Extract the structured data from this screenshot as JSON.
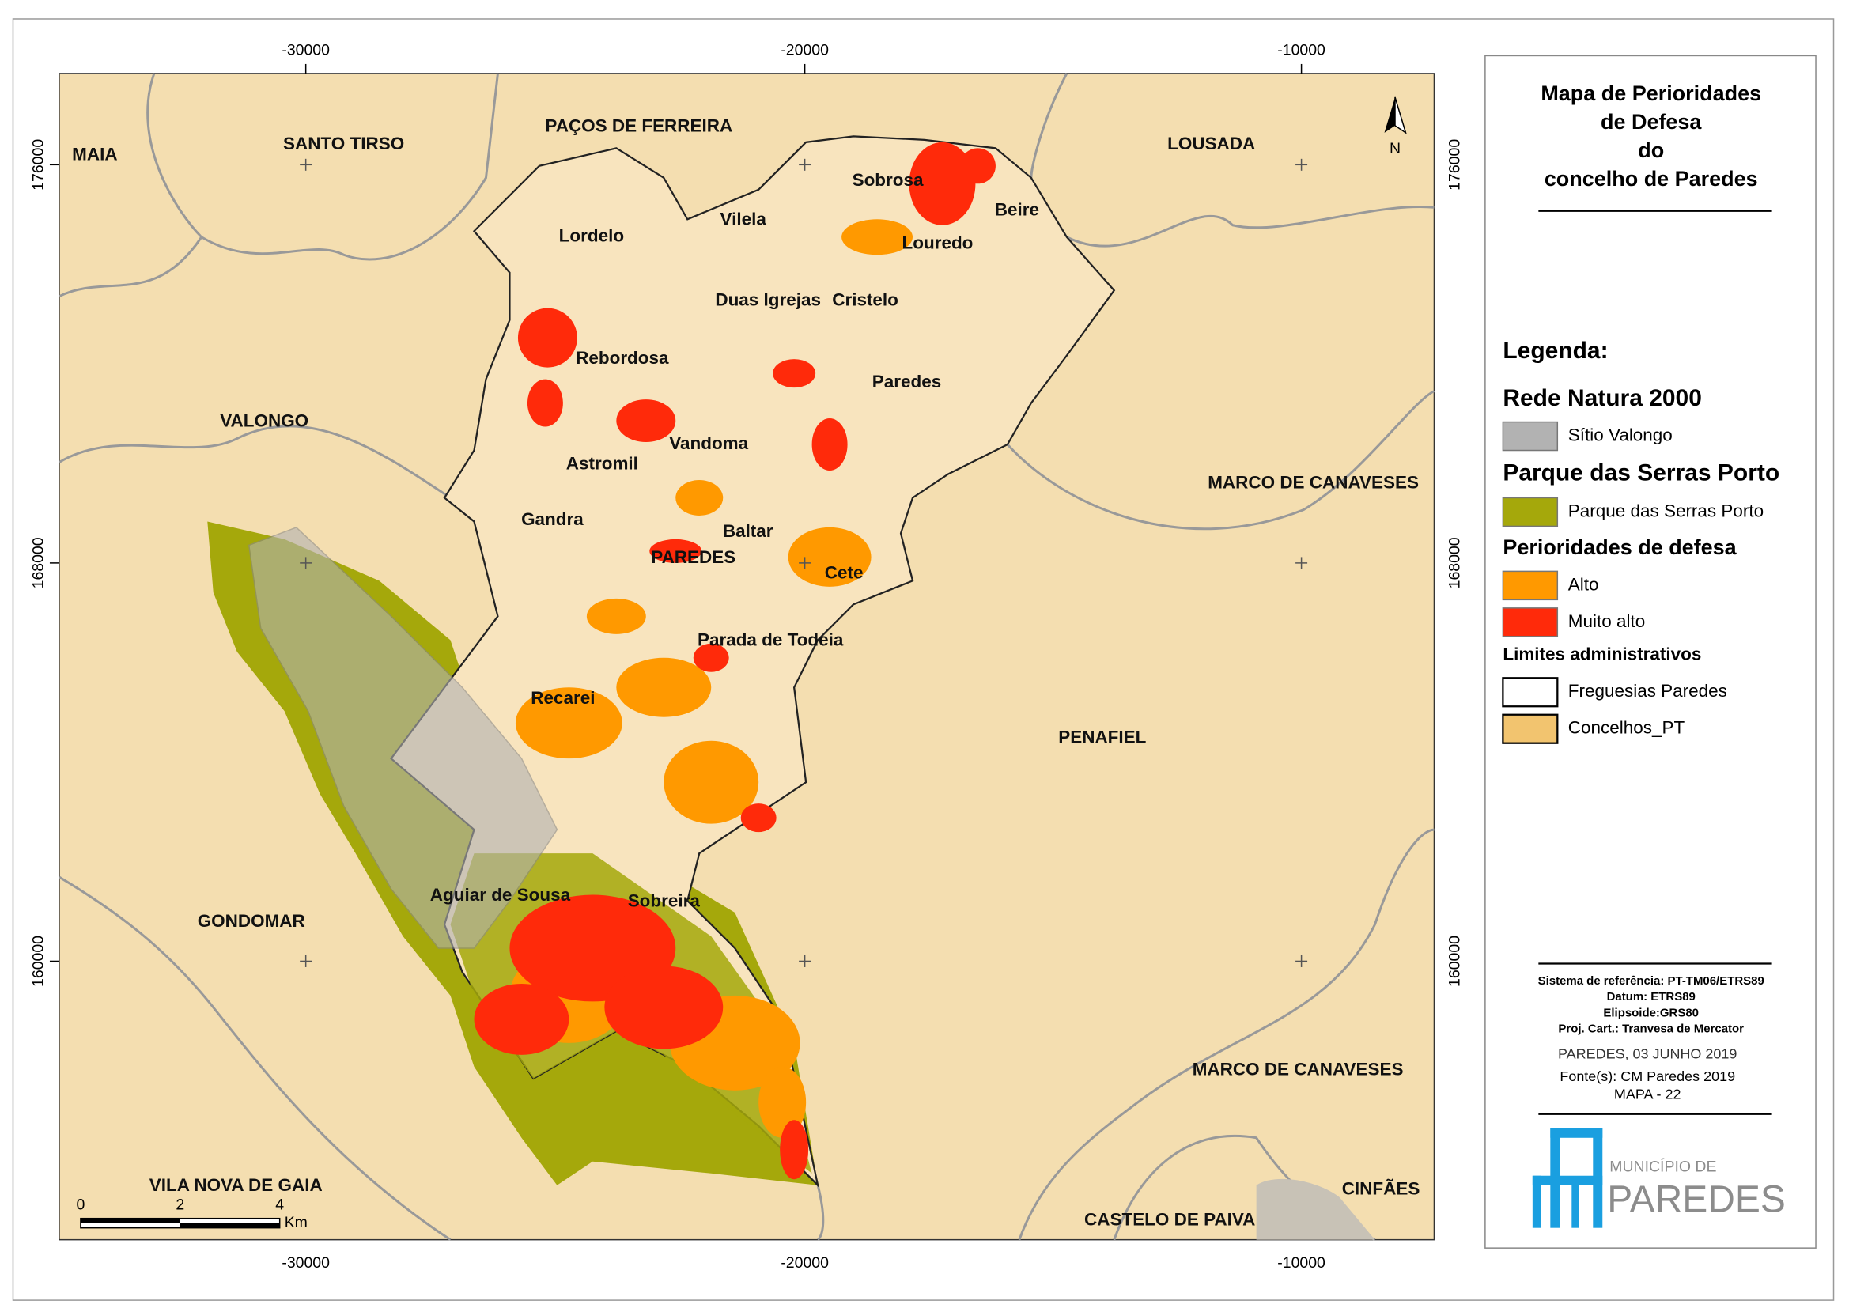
{
  "title_lines": [
    "Mapa de Perioridades",
    "de Defesa",
    "do",
    "concelho de Paredes"
  ],
  "map": {
    "x_ticks": [
      -30000,
      -20000,
      -10000
    ],
    "y_ticks": [
      176000,
      168000,
      160000
    ],
    "municipalities": [
      "MAIA",
      "SANTO TIRSO",
      "PAÇOS DE FERREIRA",
      "LOUSADA",
      "VALONGO",
      "MARCO DE CANAVESES",
      "PENAFIEL",
      "GONDOMAR",
      "MARCO DE CANAVESES",
      "VILA NOVA DE GAIA",
      "CASTELO DE PAIVA",
      "CINFÃES"
    ],
    "parishes": [
      "Sobrosa",
      "Beire",
      "Vilela",
      "Lordelo",
      "Louredo",
      "Duas Igrejas",
      "Cristelo",
      "Rebordosa",
      "Paredes",
      "Vandoma",
      "Astromil",
      "Gandra",
      "Baltar",
      "PAREDES",
      "Cete",
      "Parada de Todeia",
      "Recarei",
      "Aguiar de Sousa",
      "Sobreira"
    ],
    "scale_bar": {
      "labels": [
        0,
        2,
        4
      ],
      "unit": "Km"
    },
    "north": "N"
  },
  "legend": {
    "heading": "Legenda:",
    "groups": [
      {
        "title": "Rede Natura 2000",
        "items": [
          {
            "label": "Sítio Valongo",
            "color": "#b2b2b2"
          }
        ]
      },
      {
        "title": "Parque das Serras Porto",
        "items": [
          {
            "label": "Parque das Serras Porto",
            "color": "#a5a80b"
          }
        ]
      },
      {
        "title": "Perioridades de defesa",
        "items": [
          {
            "label": "Alto",
            "color": "#ff9900"
          },
          {
            "label": "Muito alto",
            "color": "#ff2a0a"
          }
        ]
      },
      {
        "title": "Limites administrativos",
        "items": [
          {
            "label": "Freguesias Paredes",
            "color": "#ffffff"
          },
          {
            "label": "Concelhos_PT",
            "color": "#f2c46f"
          }
        ]
      }
    ]
  },
  "info": {
    "lines": [
      "Sistema de referência: PT-TM06/ETRS89",
      "Datum: ETRS89",
      "Elipsoide:GRS80",
      "Proj. Cart.: Tranvesa de Mercator"
    ],
    "date": "PAREDES, 03 JUNHO 2019",
    "source": "Fonte(s): CM Paredes 2019",
    "map_id": "MAPA - 22"
  },
  "logo": {
    "line1": "MUNICÍPIO DE",
    "line2": "PAREDES"
  }
}
